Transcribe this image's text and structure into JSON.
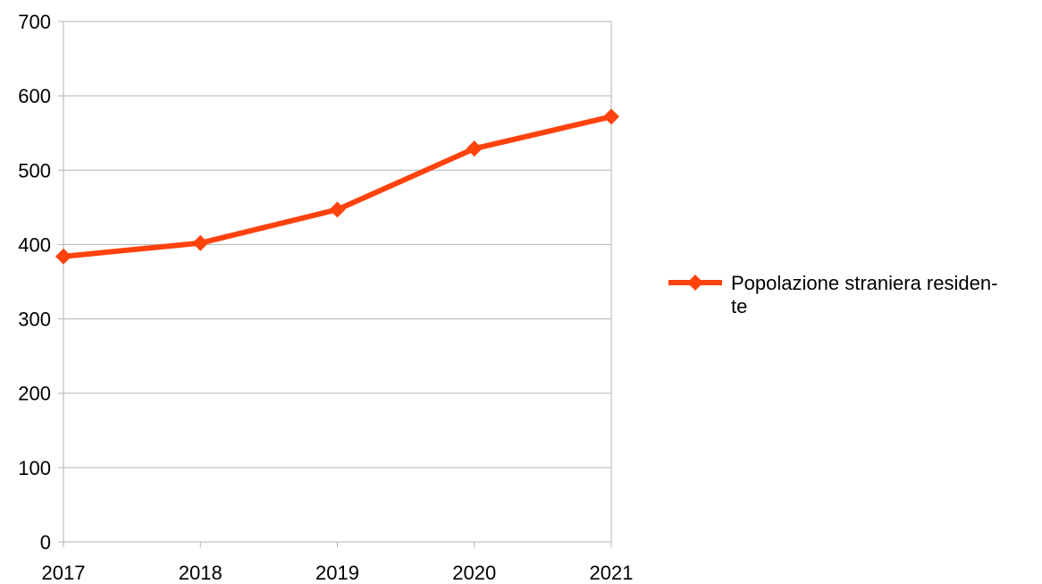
{
  "chart_data": {
    "type": "line",
    "title": "",
    "xlabel": "",
    "ylabel": "",
    "categories": [
      "2017",
      "2018",
      "2019",
      "2020",
      "2021"
    ],
    "series": [
      {
        "name": "Popolazione straniera residente",
        "name_lines": [
          "Popolazione straniera residen-",
          "te"
        ],
        "values": [
          384,
          402,
          447,
          529,
          572
        ],
        "color": "#ff420e",
        "marker": "diamond"
      }
    ],
    "ylim": [
      0,
      700
    ],
    "yticks": [
      0,
      100,
      200,
      300,
      400,
      500,
      600,
      700
    ],
    "ytick_labels": [
      "0",
      "100",
      "200",
      "300",
      "400",
      "500",
      "600",
      "700"
    ],
    "grid": true,
    "grid_color": "#b3b3b3",
    "legend": "right"
  }
}
